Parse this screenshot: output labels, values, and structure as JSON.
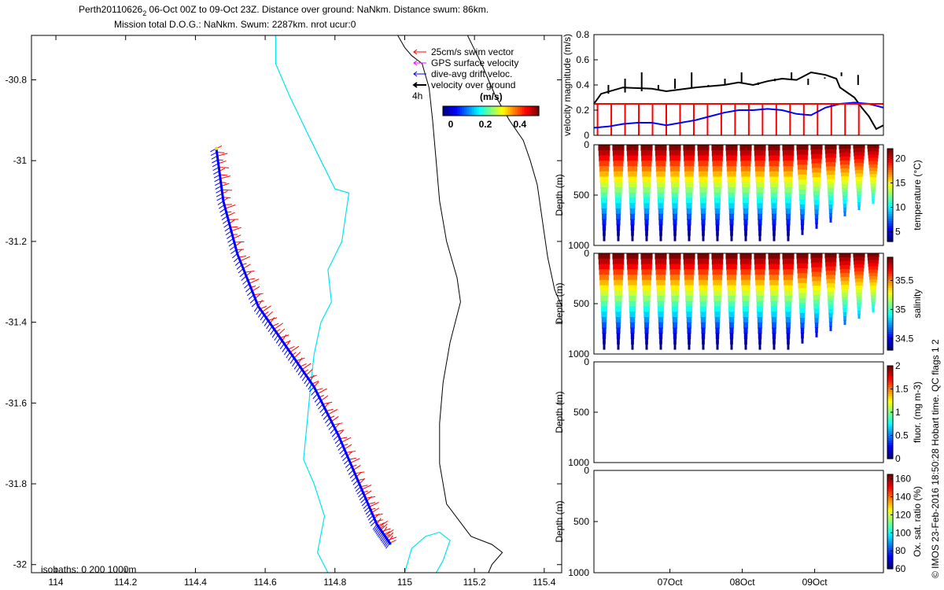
{
  "title_line1": "Perth20110626",
  "title_sub": "2",
  "title_line1_rest": " 06-Oct 00Z to 09-Oct 23Z. Distance over ground: NaNkm. Distance swum: 86km.",
  "title_line2": "Mission total D.O.G.: NaNkm. Swum: 2287km. nrot ucur:0",
  "side_credit": "© IMOS 23-Feb-2016 18:50:28 Hobart time. QC flags 1  2",
  "colors": {
    "coast": "#000000",
    "isobath": "#00e5ee",
    "swim": "#ff0000",
    "gps": "#ff00ff",
    "drift": "#0000ff",
    "vog": "#000000"
  },
  "chart_data": [
    {
      "type": "scatter",
      "name": "map",
      "xlim": [
        113.93,
        115.45
      ],
      "ylim": [
        -32.02,
        -30.69
      ],
      "xticks": [
        "114",
        "114.2",
        "114.4",
        "114.6",
        "114.8",
        "115",
        "115.2",
        "115.4"
      ],
      "yticks": [
        "-30.8",
        "-31",
        "-31.2",
        "-31.4",
        "-31.6",
        "-31.8",
        "-32"
      ],
      "legend": {
        "position": "top-right",
        "entries": [
          "25cm/s swim vector",
          "GPS surface velocity",
          "dive-avg drift veloc.",
          "velocity over ground"
        ],
        "extra": "4h",
        "colorbar_title": "(m/s)",
        "colorbar_ticks": [
          "0",
          "0.2",
          "0.4"
        ],
        "colorbar_range": [
          0,
          0.5
        ]
      },
      "isobath_note": "isobaths: 0   200  1000m",
      "track": [
        [
          114.46,
          -30.97
        ],
        [
          114.48,
          -31.1
        ],
        [
          114.52,
          -31.23
        ],
        [
          114.58,
          -31.36
        ],
        [
          114.66,
          -31.46
        ],
        [
          114.74,
          -31.56
        ],
        [
          114.81,
          -31.68
        ],
        [
          114.87,
          -31.8
        ],
        [
          114.92,
          -31.9
        ],
        [
          114.96,
          -31.95
        ]
      ],
      "coastline": [
        [
          115.18,
          -30.69
        ],
        [
          115.22,
          -30.76
        ],
        [
          115.24,
          -30.8
        ],
        [
          115.26,
          -30.84
        ],
        [
          115.3,
          -30.9
        ],
        [
          115.34,
          -30.95
        ],
        [
          115.36,
          -31.0
        ],
        [
          115.38,
          -31.06
        ],
        [
          115.39,
          -31.12
        ],
        [
          115.4,
          -31.18
        ],
        [
          115.41,
          -31.24
        ],
        [
          115.43,
          -31.32
        ],
        [
          115.45,
          -31.36
        ]
      ],
      "coastline2": [
        [
          114.98,
          -30.69
        ],
        [
          115.0,
          -30.72
        ],
        [
          115.02,
          -30.74
        ],
        [
          115.05,
          -30.76
        ],
        [
          115.07,
          -30.82
        ],
        [
          115.08,
          -30.9
        ],
        [
          115.09,
          -31.0
        ],
        [
          115.1,
          -31.1
        ],
        [
          115.12,
          -31.2
        ],
        [
          115.15,
          -31.29
        ],
        [
          115.16,
          -31.35
        ],
        [
          115.13,
          -31.45
        ],
        [
          115.11,
          -31.55
        ],
        [
          115.1,
          -31.65
        ],
        [
          115.1,
          -31.75
        ],
        [
          115.12,
          -31.85
        ],
        [
          115.19,
          -31.93
        ],
        [
          115.25,
          -31.95
        ],
        [
          115.28,
          -31.97
        ],
        [
          115.25,
          -32.0
        ],
        [
          115.24,
          -32.02
        ]
      ],
      "isobath": [
        [
          114.63,
          -30.69
        ],
        [
          114.63,
          -30.76
        ],
        [
          114.67,
          -30.84
        ],
        [
          114.72,
          -30.93
        ],
        [
          114.76,
          -31.0
        ],
        [
          114.8,
          -31.07
        ],
        [
          114.84,
          -31.08
        ],
        [
          114.82,
          -31.2
        ],
        [
          114.78,
          -31.27
        ],
        [
          114.79,
          -31.35
        ],
        [
          114.76,
          -31.4
        ],
        [
          114.74,
          -31.48
        ],
        [
          114.73,
          -31.56
        ],
        [
          114.72,
          -31.65
        ],
        [
          114.71,
          -31.74
        ],
        [
          114.74,
          -31.8
        ],
        [
          114.77,
          -31.88
        ],
        [
          114.75,
          -31.97
        ],
        [
          114.78,
          -32.02
        ]
      ],
      "isobath2": [
        [
          115.0,
          -32.02
        ],
        [
          115.02,
          -31.96
        ],
        [
          115.06,
          -31.93
        ],
        [
          115.1,
          -31.92
        ],
        [
          115.13,
          -31.94
        ],
        [
          115.11,
          -31.99
        ],
        [
          115.09,
          -32.02
        ]
      ]
    },
    {
      "type": "line",
      "name": "velocity",
      "ylabel": "velocity magnitude (m/s)",
      "ylim": [
        0,
        0.8
      ],
      "yticks": [
        "0",
        "0.2",
        "0.4",
        "0.6",
        "0.8"
      ],
      "xlim": [
        0,
        4
      ],
      "series": [
        {
          "color": "#000000",
          "x": [
            0,
            0.1,
            0.4,
            0.8,
            1.0,
            1.4,
            1.8,
            2.0,
            2.2,
            2.4,
            2.6,
            2.8,
            3.0,
            3.2,
            3.35,
            3.4,
            3.6,
            3.7,
            3.8,
            3.9,
            4.0
          ],
          "values": [
            0.25,
            0.33,
            0.38,
            0.37,
            0.35,
            0.38,
            0.4,
            0.42,
            0.4,
            0.43,
            0.45,
            0.44,
            0.5,
            0.48,
            0.45,
            0.38,
            0.3,
            0.22,
            0.15,
            0.05,
            0.08
          ]
        },
        {
          "color": "#0000ff",
          "x": [
            0,
            0.2,
            0.4,
            0.6,
            0.8,
            1.0,
            1.2,
            1.4,
            1.6,
            1.8,
            2.0,
            2.2,
            2.4,
            2.6,
            2.8,
            3.0,
            3.2,
            3.4,
            3.6,
            3.8,
            4.0
          ],
          "values": [
            0.06,
            0.07,
            0.09,
            0.1,
            0.1,
            0.08,
            0.1,
            0.12,
            0.15,
            0.18,
            0.2,
            0.2,
            0.21,
            0.2,
            0.17,
            0.16,
            0.22,
            0.25,
            0.26,
            0.25,
            0.22
          ]
        },
        {
          "color": "#ff0000",
          "x": [
            0,
            4
          ],
          "values": [
            0.25,
            0.25
          ]
        }
      ]
    },
    {
      "type": "scatter",
      "name": "temperature",
      "ylabel": "Depth (m)",
      "ylim": [
        1000,
        0
      ],
      "yticks": [
        "0",
        "500",
        "1000"
      ],
      "colorbar_label": "temperature (°C)",
      "colorbar_ticks": [
        "5",
        "10",
        "15",
        "20"
      ],
      "colorbar_range": [
        3,
        22
      ],
      "dive_count": 20,
      "first_dives_depth": 950,
      "late_dives_depth": 580
    },
    {
      "type": "scatter",
      "name": "salinity",
      "ylabel": "Depth (m)",
      "ylim": [
        1000,
        0
      ],
      "yticks": [
        "0",
        "500",
        "1000"
      ],
      "colorbar_label": "salinity",
      "colorbar_ticks": [
        "34.5",
        "35",
        "35.5"
      ],
      "colorbar_range": [
        34.3,
        35.9
      ],
      "dive_count": 20,
      "first_dives_depth": 950,
      "late_dives_depth": 580
    },
    {
      "type": "scatter",
      "name": "fluor",
      "ylabel": "Depth (m)",
      "ylim": [
        1000,
        0
      ],
      "yticks": [
        "0",
        "500",
        "1000"
      ],
      "colorbar_label": "fluor. (mg m-3)",
      "colorbar_ticks": [
        "0",
        "0.5",
        "1",
        "1.5",
        "2"
      ],
      "colorbar_range": [
        0,
        2
      ]
    },
    {
      "type": "scatter",
      "name": "oxygen",
      "ylabel": "Depth (m)",
      "ylim": [
        1000,
        0
      ],
      "yticks": [
        "0",
        "500",
        "1000"
      ],
      "xticks": [
        "07Oct",
        "08Oct",
        "09Oct"
      ],
      "colorbar_label": "Ox. sat. ratio (%)",
      "colorbar_ticks": [
        "60",
        "80",
        "100",
        "120",
        "140",
        "160"
      ],
      "colorbar_range": [
        60,
        165
      ]
    }
  ]
}
